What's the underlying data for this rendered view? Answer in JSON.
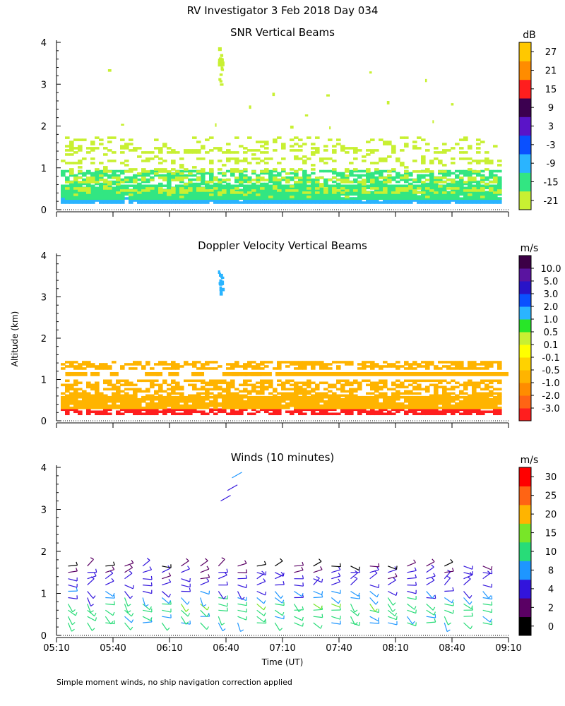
{
  "figure": {
    "title": "RV Investigator    3 Feb 2018 Day 034",
    "y_axis_label": "Altitude (km)",
    "x_axis_label": "Time (UT)",
    "footnote": "Simple moment winds, no ship navigation correction applied"
  },
  "chart_data": [
    {
      "type": "heatmap",
      "title": "SNR Vertical Beams",
      "ylabel": "Altitude (km)",
      "ylim": [
        0,
        4
      ],
      "yticks": [
        "0",
        "1",
        "2",
        "3",
        "4"
      ],
      "xlim_hours": [
        5.1667,
        9.1667
      ],
      "colorbar": {
        "unit": "dB",
        "labels": [
          "-21",
          "-15",
          "-9",
          "-3",
          "3",
          "9",
          "15",
          "21",
          "27"
        ],
        "colors": [
          "#c8f032",
          "#32e682",
          "#2ab4ff",
          "#0a50ff",
          "#5a14c8",
          "#3c0050",
          "#ff1e1e",
          "#ff8c00",
          "#ffc800"
        ]
      },
      "layers": [
        {
          "alt_km": [
            0.18,
            0.3
          ],
          "category": 2,
          "coverage": "continuous"
        },
        {
          "alt_km": [
            0.25,
            0.6
          ],
          "category": 1,
          "coverage": "continuous"
        },
        {
          "alt_km": [
            0.6,
            0.95
          ],
          "category": 1,
          "coverage": "patchy"
        },
        {
          "alt_km": [
            0.3,
            1.5
          ],
          "category": 0,
          "coverage": "banded"
        },
        {
          "alt_km": [
            1.5,
            1.75
          ],
          "category": 0,
          "coverage": "sparse"
        },
        {
          "alt_km": [
            3.0,
            3.9
          ],
          "category": 0,
          "coverage": "plume near 06:37"
        },
        {
          "alt_km": [
            1.9,
            3.4
          ],
          "category": 0,
          "coverage": "isolated points"
        }
      ]
    },
    {
      "type": "heatmap",
      "title": "Doppler Velocity Vertical Beams",
      "ylabel": "Altitude (km)",
      "ylim": [
        0,
        4
      ],
      "yticks": [
        "0",
        "1",
        "2",
        "3",
        "4"
      ],
      "xlim_hours": [
        5.1667,
        9.1667
      ],
      "colorbar": {
        "unit": "m/s",
        "labels": [
          "-3.0",
          "-2.0",
          "-1.0",
          "-0.5",
          "-0.1",
          "0.1",
          "0.5",
          "1.0",
          "2.0",
          "3.0",
          "5.0",
          "10.0"
        ],
        "colors": [
          "#ff1e1e",
          "#ff6414",
          "#ff8c00",
          "#ffb400",
          "#ffd200",
          "#ffff00",
          "#c8f032",
          "#28e628",
          "#2ab4ff",
          "#0a50ff",
          "#2814c8",
          "#5a14a0",
          "#3c0046"
        ]
      },
      "layers": [
        {
          "alt_km": [
            0.18,
            0.3
          ],
          "category": 0,
          "coverage": "dense"
        },
        {
          "alt_km": [
            0.3,
            0.6
          ],
          "category": 3,
          "coverage": "continuous"
        },
        {
          "alt_km": [
            0.6,
            1.0
          ],
          "category": 3,
          "coverage": "patchy"
        },
        {
          "alt_km": [
            1.08,
            1.18
          ],
          "category": 3,
          "coverage": "continuous line"
        },
        {
          "alt_km": [
            1.25,
            1.45
          ],
          "category": 3,
          "coverage": "patchy"
        },
        {
          "alt_km": [
            3.1,
            3.65
          ],
          "category": 8,
          "coverage": "isolated near 06:37"
        }
      ]
    },
    {
      "type": "wind_barbs",
      "title": "Winds (10 minutes)",
      "ylabel": "Altitude (km)",
      "xlabel": "Time (UT)",
      "ylim": [
        0,
        4
      ],
      "yticks": [
        "0",
        "1",
        "2",
        "3",
        "4"
      ],
      "xlim_hours": [
        5.1667,
        9.1667
      ],
      "xticks": [
        {
          "hour": 5.1667,
          "label": "05:10"
        },
        {
          "hour": 5.6667,
          "label": "05:40"
        },
        {
          "hour": 6.1667,
          "label": "06:10"
        },
        {
          "hour": 6.6667,
          "label": "06:40"
        },
        {
          "hour": 7.1667,
          "label": "07:10"
        },
        {
          "hour": 7.6667,
          "label": "07:40"
        },
        {
          "hour": 8.1667,
          "label": "08:10"
        },
        {
          "hour": 8.6667,
          "label": "08:40"
        },
        {
          "hour": 9.1667,
          "label": "09:10"
        }
      ],
      "colorbar": {
        "unit": "m/s",
        "labels": [
          "0",
          "2",
          "4",
          "8",
          "10",
          "15",
          "20",
          "25",
          "30"
        ],
        "colors": [
          "#000000",
          "#5a0064",
          "#3214dc",
          "#1e96ff",
          "#28dc78",
          "#78e628",
          "#ffb400",
          "#ff6414",
          "#ff0000"
        ]
      },
      "barb_times_hours": [
        5.27,
        5.44,
        5.6,
        5.77,
        5.93,
        6.1,
        6.27,
        6.44,
        6.6,
        6.77,
        6.94,
        7.1,
        7.27,
        7.44,
        7.6,
        7.77,
        7.94,
        8.1,
        8.27,
        8.44,
        8.6,
        8.77,
        8.94
      ],
      "barb_altitudes_km": [
        0.3,
        0.45,
        0.6,
        0.75,
        0.9,
        1.05,
        1.2,
        1.35,
        1.5,
        1.65
      ],
      "barb_speed_ms_by_altitude": [
        10,
        10,
        12,
        14,
        9,
        8,
        6,
        5,
        4,
        3
      ],
      "upper_feature": {
        "hours": [
          6.62,
          6.68,
          6.72
        ],
        "alt_km": [
          3.2,
          3.45,
          3.75
        ],
        "speed_ms": [
          4,
          4,
          8
        ]
      }
    }
  ]
}
